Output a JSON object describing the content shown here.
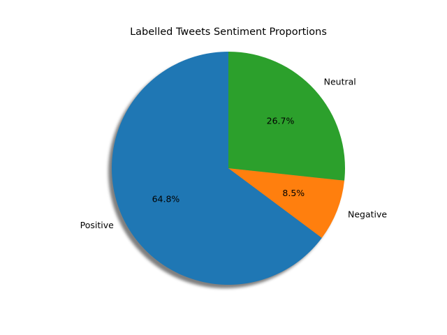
{
  "chart_data": {
    "type": "pie",
    "title": "Labelled Tweets Sentiment Proportions",
    "start_angle_deg": 90,
    "direction": "counterclockwise",
    "shadow": true,
    "legend": "none",
    "slices": [
      {
        "label": "Positive",
        "value": 64.8,
        "pct_label": "64.8%",
        "color": "#1f77b4"
      },
      {
        "label": "Negative",
        "value": 8.5,
        "pct_label": "8.5%",
        "color": "#ff7f0e"
      },
      {
        "label": "Neutral",
        "value": 26.7,
        "pct_label": "26.7%",
        "color": "#2ca02c"
      }
    ]
  }
}
